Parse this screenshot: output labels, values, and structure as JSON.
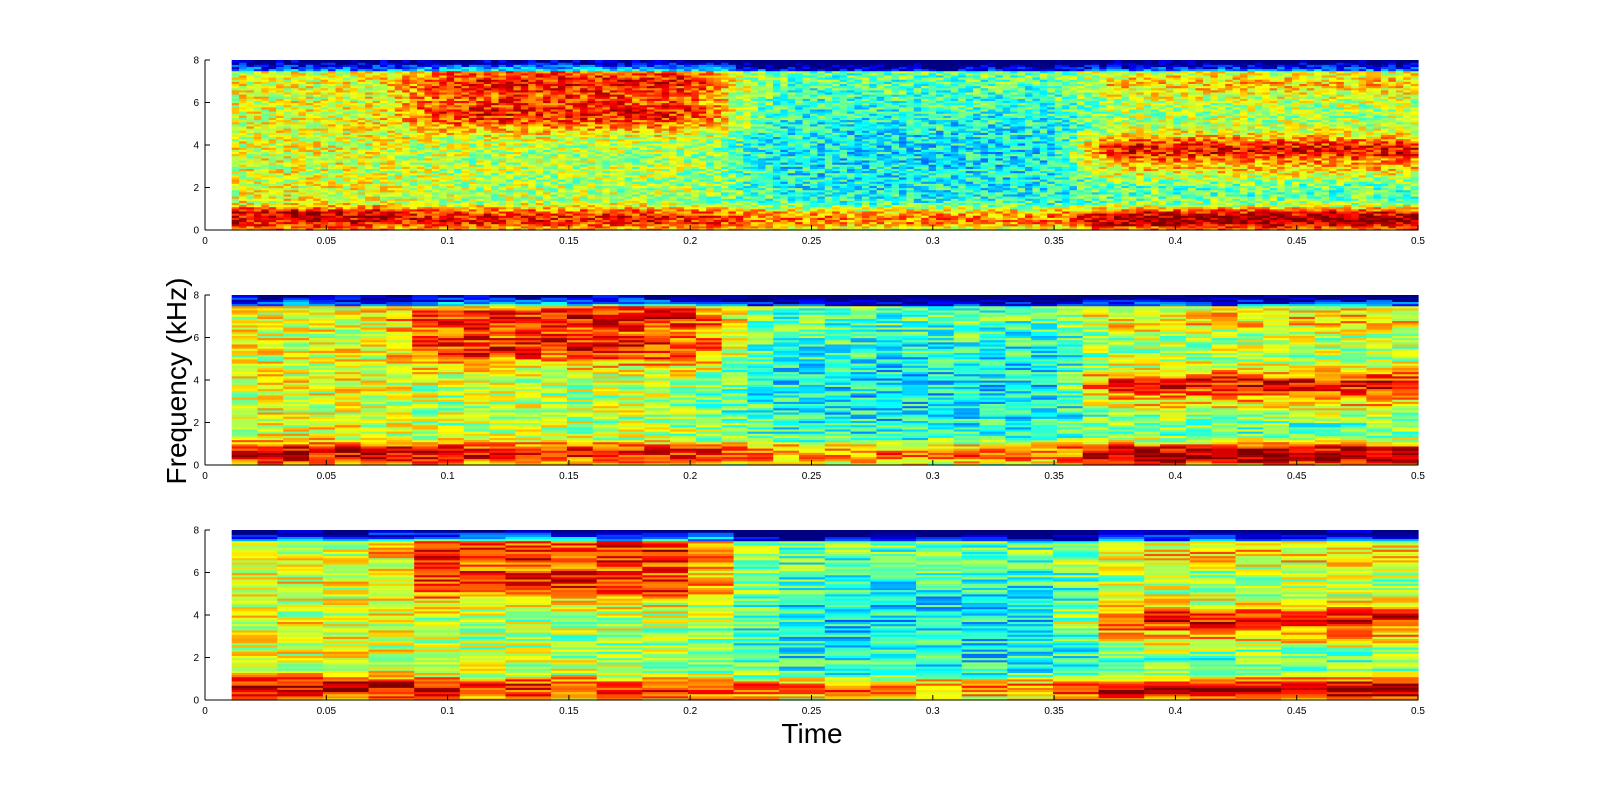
{
  "figure": {
    "xlabel": "Time",
    "ylabel": "Frequency (kHz)"
  },
  "chart_data": [
    {
      "type": "heatmap",
      "name": "spectrogram-fine",
      "title": "",
      "xlabel": "",
      "ylabel": "",
      "xlim": [
        0,
        0.5
      ],
      "ylim": [
        0,
        8
      ],
      "data_xlim": [
        0.011,
        0.5
      ],
      "x_ticks": [
        "0",
        "0.05",
        "0.1",
        "0.15",
        "0.2",
        "0.25",
        "0.3",
        "0.35",
        "0.4",
        "0.45",
        "0.5"
      ],
      "y_ticks": [
        "0",
        "2",
        "4",
        "6",
        "8"
      ],
      "time_frames": 160,
      "frequency_bins": 80,
      "colormap": "jet",
      "grid": false,
      "legend": "none"
    },
    {
      "type": "heatmap",
      "name": "spectrogram-medium",
      "title": "",
      "xlabel": "",
      "ylabel": "",
      "xlim": [
        0,
        0.5
      ],
      "ylim": [
        0,
        8
      ],
      "data_xlim": [
        0.011,
        0.5
      ],
      "x_ticks": [
        "0",
        "0.05",
        "0.1",
        "0.15",
        "0.2",
        "0.25",
        "0.3",
        "0.35",
        "0.4",
        "0.45",
        "0.5"
      ],
      "y_ticks": [
        "0",
        "2",
        "4",
        "6",
        "8"
      ],
      "time_frames": 46,
      "frequency_bins": 80,
      "colormap": "jet",
      "grid": false,
      "legend": "none"
    },
    {
      "type": "heatmap",
      "name": "spectrogram-coarse",
      "title": "",
      "xlabel": "",
      "ylabel": "",
      "xlim": [
        0,
        0.5
      ],
      "ylim": [
        0,
        8
      ],
      "data_xlim": [
        0.011,
        0.5
      ],
      "x_ticks": [
        "0",
        "0.05",
        "0.1",
        "0.15",
        "0.2",
        "0.25",
        "0.3",
        "0.35",
        "0.4",
        "0.45",
        "0.5"
      ],
      "y_ticks": [
        "0",
        "2",
        "4",
        "6",
        "8"
      ],
      "time_frames": 26,
      "frequency_bins": 80,
      "colormap": "jet",
      "grid": false,
      "legend": "none"
    }
  ]
}
